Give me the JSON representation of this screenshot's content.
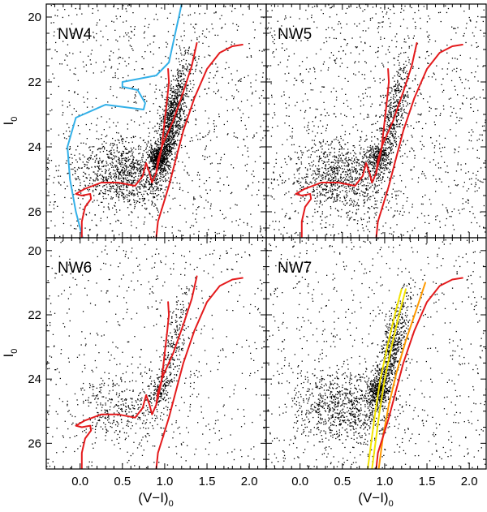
{
  "chart_data": {
    "type": "scatter",
    "title": "",
    "xlabel": "(V−I)",
    "xlabel_subscript": "0",
    "ylabel": "I",
    "ylabel_subscript": "0",
    "xlim": [
      -0.4,
      2.2
    ],
    "ylim": [
      26.8,
      19.6
    ],
    "x_ticks": [
      0.0,
      0.5,
      1.0,
      1.5,
      2.0
    ],
    "x_tick_labels": [
      "0.0",
      "0.5",
      "1.0",
      "1.5",
      "2.0"
    ],
    "y_ticks": [
      20,
      22,
      24,
      26
    ],
    "y_tick_labels": [
      "20",
      "22",
      "24",
      "26"
    ],
    "colors": {
      "red": "#e41a1c",
      "blue": "#33b0e8",
      "yellow": "#f3e400",
      "orange": "#ff9a00",
      "points": "#000000"
    },
    "panels": [
      {
        "label": "NW4",
        "n_stars": 3400,
        "isochrones": [
          {
            "name": "blue",
            "color": "#33b0e8",
            "segments": [
              [
                [
                  1.2,
                  19.6
                ],
                [
                  1.05,
                  21.4
                ],
                [
                  0.9,
                  21.8
                ],
                [
                  0.7,
                  21.9
                ],
                [
                  0.5,
                  22.0
                ],
                [
                  0.5,
                  22.15
                ],
                [
                  0.68,
                  22.25
                ],
                [
                  0.77,
                  22.65
                ],
                [
                  0.75,
                  22.85
                ],
                [
                  0.6,
                  22.8
                ],
                [
                  0.3,
                  22.7
                ],
                [
                  -0.05,
                  23.1
                ],
                [
                  -0.15,
                  24.0
                ],
                [
                  -0.12,
                  25.0
                ],
                [
                  -0.05,
                  26.0
                ],
                [
                  0.03,
                  26.8
                ]
              ]
            ]
          },
          {
            "name": "red-young",
            "color": "#e41a1c",
            "segments": [
              [
                [
                  1.38,
                  20.8
                ],
                [
                  1.32,
                  21.5
                ],
                [
                  1.22,
                  22.3
                ],
                [
                  1.1,
                  23.2
                ],
                [
                  0.98,
                  23.9
                ],
                [
                  0.92,
                  24.4
                ],
                [
                  0.9,
                  24.8
                ],
                [
                  0.85,
                  25.1
                ],
                [
                  0.82,
                  24.8
                ],
                [
                  0.78,
                  24.5
                ],
                [
                  0.74,
                  24.9
                ],
                [
                  0.65,
                  25.2
                ],
                [
                  0.45,
                  25.1
                ],
                [
                  0.25,
                  25.1
                ],
                [
                  0.05,
                  25.3
                ],
                [
                  -0.05,
                  25.45
                ],
                [
                  0.02,
                  25.5
                ],
                [
                  0.12,
                  25.45
                ],
                [
                  0.13,
                  25.6
                ],
                [
                  0.06,
                  25.85
                ],
                [
                  0.02,
                  26.3
                ],
                [
                  0.02,
                  26.8
                ]
              ],
              [
                [
                  0.9,
                  24.8
                ],
                [
                  0.96,
                  24.1
                ],
                [
                  1.0,
                  23.2
                ],
                [
                  1.03,
                  22.5
                ],
                [
                  1.05,
                  22.0
                ],
                [
                  1.04,
                  21.6
                ]
              ]
            ]
          },
          {
            "name": "red-old",
            "color": "#e41a1c",
            "segments": [
              [
                [
                  1.92,
                  20.85
                ],
                [
                  1.8,
                  20.9
                ],
                [
                  1.65,
                  21.1
                ],
                [
                  1.5,
                  21.6
                ],
                [
                  1.35,
                  22.5
                ],
                [
                  1.22,
                  23.5
                ],
                [
                  1.12,
                  24.5
                ],
                [
                  1.05,
                  25.2
                ],
                [
                  0.98,
                  25.8
                ],
                [
                  0.92,
                  26.3
                ],
                [
                  0.9,
                  26.8
                ]
              ]
            ]
          }
        ]
      },
      {
        "label": "NW5",
        "n_stars": 2700,
        "isochrones": [
          {
            "name": "red-young",
            "color": "#e41a1c",
            "segments": [
              [
                [
                  1.38,
                  20.8
                ],
                [
                  1.32,
                  21.5
                ],
                [
                  1.22,
                  22.3
                ],
                [
                  1.1,
                  23.2
                ],
                [
                  0.98,
                  23.9
                ],
                [
                  0.92,
                  24.4
                ],
                [
                  0.9,
                  24.8
                ],
                [
                  0.85,
                  25.1
                ],
                [
                  0.82,
                  24.8
                ],
                [
                  0.78,
                  24.5
                ],
                [
                  0.74,
                  24.9
                ],
                [
                  0.65,
                  25.2
                ],
                [
                  0.45,
                  25.1
                ],
                [
                  0.25,
                  25.1
                ],
                [
                  0.05,
                  25.3
                ],
                [
                  -0.05,
                  25.45
                ],
                [
                  0.02,
                  25.5
                ],
                [
                  0.12,
                  25.45
                ],
                [
                  0.13,
                  25.6
                ],
                [
                  0.06,
                  25.85
                ],
                [
                  0.02,
                  26.3
                ],
                [
                  0.02,
                  26.8
                ]
              ],
              [
                [
                  0.9,
                  24.8
                ],
                [
                  0.96,
                  24.1
                ],
                [
                  1.0,
                  23.2
                ],
                [
                  1.03,
                  22.5
                ],
                [
                  1.05,
                  22.0
                ],
                [
                  1.04,
                  21.6
                ]
              ]
            ]
          },
          {
            "name": "red-old",
            "color": "#e41a1c",
            "segments": [
              [
                [
                  1.92,
                  20.85
                ],
                [
                  1.8,
                  20.9
                ],
                [
                  1.65,
                  21.1
                ],
                [
                  1.5,
                  21.6
                ],
                [
                  1.35,
                  22.5
                ],
                [
                  1.22,
                  23.5
                ],
                [
                  1.12,
                  24.5
                ],
                [
                  1.05,
                  25.2
                ],
                [
                  0.98,
                  25.8
                ],
                [
                  0.92,
                  26.3
                ],
                [
                  0.9,
                  26.8
                ]
              ]
            ]
          }
        ]
      },
      {
        "label": "NW6",
        "n_stars": 1300,
        "isochrones": [
          {
            "name": "red-young",
            "color": "#e41a1c",
            "segments": [
              [
                [
                  1.38,
                  20.8
                ],
                [
                  1.32,
                  21.5
                ],
                [
                  1.22,
                  22.3
                ],
                [
                  1.1,
                  23.2
                ],
                [
                  0.98,
                  23.9
                ],
                [
                  0.92,
                  24.4
                ],
                [
                  0.9,
                  24.8
                ],
                [
                  0.85,
                  25.1
                ],
                [
                  0.82,
                  24.8
                ],
                [
                  0.78,
                  24.5
                ],
                [
                  0.74,
                  24.9
                ],
                [
                  0.65,
                  25.2
                ],
                [
                  0.45,
                  25.1
                ],
                [
                  0.25,
                  25.1
                ],
                [
                  0.05,
                  25.3
                ],
                [
                  -0.05,
                  25.45
                ],
                [
                  0.02,
                  25.5
                ],
                [
                  0.12,
                  25.45
                ],
                [
                  0.13,
                  25.6
                ],
                [
                  0.06,
                  25.85
                ],
                [
                  0.02,
                  26.3
                ],
                [
                  0.02,
                  26.8
                ]
              ],
              [
                [
                  0.9,
                  24.8
                ],
                [
                  0.96,
                  24.1
                ],
                [
                  1.0,
                  23.2
                ],
                [
                  1.03,
                  22.5
                ],
                [
                  1.05,
                  22.0
                ],
                [
                  1.04,
                  21.6
                ]
              ]
            ]
          },
          {
            "name": "red-old",
            "color": "#e41a1c",
            "segments": [
              [
                [
                  1.92,
                  20.85
                ],
                [
                  1.8,
                  20.9
                ],
                [
                  1.65,
                  21.1
                ],
                [
                  1.5,
                  21.6
                ],
                [
                  1.35,
                  22.5
                ],
                [
                  1.22,
                  23.5
                ],
                [
                  1.12,
                  24.5
                ],
                [
                  1.05,
                  25.2
                ],
                [
                  0.98,
                  25.8
                ],
                [
                  0.92,
                  26.3
                ],
                [
                  0.9,
                  26.8
                ]
              ]
            ]
          }
        ]
      },
      {
        "label": "NW7",
        "n_stars": 2600,
        "isochrones": [
          {
            "name": "yellow-1",
            "color": "#f3e400",
            "segments": [
              [
                [
                  1.2,
                  21.2
                ],
                [
                  1.12,
                  22.0
                ],
                [
                  1.03,
                  23.0
                ],
                [
                  0.95,
                  24.0
                ],
                [
                  0.89,
                  25.0
                ],
                [
                  0.84,
                  26.0
                ],
                [
                  0.8,
                  26.8
                ]
              ]
            ]
          },
          {
            "name": "yellow-2",
            "color": "#f3e400",
            "segments": [
              [
                [
                  1.25,
                  21.2
                ],
                [
                  1.17,
                  22.0
                ],
                [
                  1.08,
                  23.0
                ],
                [
                  1.0,
                  24.0
                ],
                [
                  0.94,
                  25.0
                ],
                [
                  0.89,
                  26.0
                ],
                [
                  0.85,
                  26.8
                ]
              ]
            ]
          },
          {
            "name": "orange",
            "color": "#ff9a00",
            "segments": [
              [
                [
                  1.48,
                  21.0
                ],
                [
                  1.38,
                  21.8
                ],
                [
                  1.25,
                  22.8
                ],
                [
                  1.14,
                  23.8
                ],
                [
                  1.05,
                  24.8
                ],
                [
                  0.98,
                  25.8
                ],
                [
                  0.93,
                  26.8
                ]
              ]
            ]
          },
          {
            "name": "red-old",
            "color": "#e41a1c",
            "segments": [
              [
                [
                  1.92,
                  20.85
                ],
                [
                  1.8,
                  20.9
                ],
                [
                  1.65,
                  21.1
                ],
                [
                  1.5,
                  21.6
                ],
                [
                  1.35,
                  22.5
                ],
                [
                  1.22,
                  23.5
                ],
                [
                  1.12,
                  24.5
                ],
                [
                  1.05,
                  25.2
                ],
                [
                  0.98,
                  25.8
                ],
                [
                  0.92,
                  26.3
                ],
                [
                  0.9,
                  26.8
                ]
              ]
            ]
          }
        ]
      }
    ]
  }
}
